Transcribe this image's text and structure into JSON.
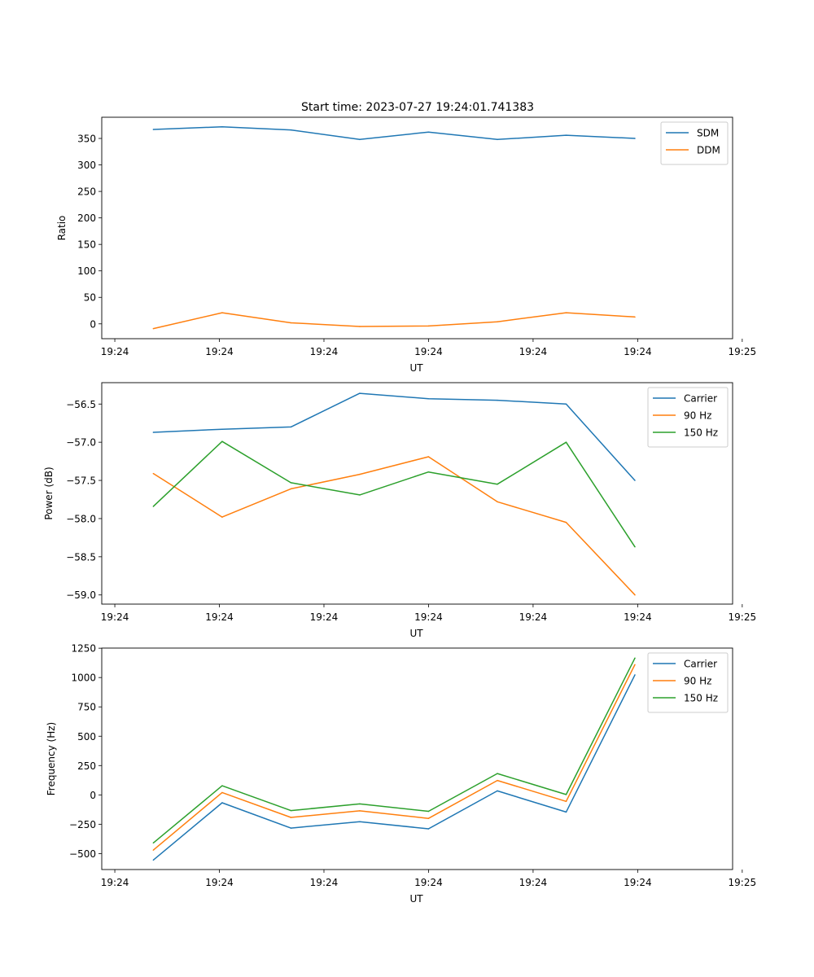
{
  "figure": {
    "title": "Start time: 2023-07-27 19:24:01.741383"
  },
  "colors": {
    "blue": "#1f77b4",
    "orange": "#ff7f0e",
    "green": "#2ca02c"
  },
  "chart_data": [
    {
      "type": "line",
      "title": "Start time: 2023-07-27 19:24:01.741383",
      "xlabel": "UT",
      "ylabel": "Ratio",
      "x": [
        1,
        2,
        3,
        4,
        5,
        6,
        7,
        8
      ],
      "xlim": [
        0.25,
        9.42
      ],
      "xticks": [
        0.44,
        1.96,
        3.48,
        5.0,
        6.52,
        8.04,
        9.56
      ],
      "xtick_labels": [
        "19:24",
        "19:24",
        "19:24",
        "19:24",
        "19:24",
        "19:24",
        "19:25"
      ],
      "ylim": [
        -28,
        390
      ],
      "yticks": [
        0,
        50,
        100,
        150,
        200,
        250,
        300,
        350
      ],
      "ytick_labels": [
        "0",
        "50",
        "100",
        "150",
        "200",
        "250",
        "300",
        "350"
      ],
      "legend": "top-right",
      "series": [
        {
          "name": "SDM",
          "color": "#1f77b4",
          "values": [
            367,
            372,
            366,
            348,
            362,
            348,
            356,
            350
          ]
        },
        {
          "name": "DDM",
          "color": "#ff7f0e",
          "values": [
            -9,
            21,
            2,
            -5,
            -4,
            4,
            21,
            13
          ]
        }
      ]
    },
    {
      "type": "line",
      "title": "",
      "xlabel": "UT",
      "ylabel": "Power (dB)",
      "x": [
        1,
        2,
        3,
        4,
        5,
        6,
        7,
        8
      ],
      "xlim": [
        0.25,
        9.42
      ],
      "xticks": [
        0.44,
        1.96,
        3.48,
        5.0,
        6.52,
        8.04,
        9.56
      ],
      "xtick_labels": [
        "19:24",
        "19:24",
        "19:24",
        "19:24",
        "19:24",
        "19:24",
        "19:25"
      ],
      "ylim": [
        -59.12,
        -56.22
      ],
      "yticks": [
        -59.0,
        -58.5,
        -58.0,
        -57.5,
        -57.0,
        -56.5
      ],
      "ytick_labels": [
        "−59.0",
        "−58.5",
        "−58.0",
        "−57.5",
        "−57.0",
        "−56.5"
      ],
      "legend": "top-right",
      "series": [
        {
          "name": "Carrier",
          "color": "#1f77b4",
          "values": [
            -56.87,
            -56.83,
            -56.8,
            -56.36,
            -56.43,
            -56.45,
            -56.5,
            -57.5
          ]
        },
        {
          "name": "90 Hz",
          "color": "#ff7f0e",
          "values": [
            -57.41,
            -57.98,
            -57.61,
            -57.42,
            -57.19,
            -57.78,
            -58.05,
            -59.0
          ]
        },
        {
          "name": "150 Hz",
          "color": "#2ca02c",
          "values": [
            -57.84,
            -56.99,
            -57.53,
            -57.69,
            -57.39,
            -57.55,
            -57.0,
            -58.37
          ]
        }
      ]
    },
    {
      "type": "line",
      "title": "",
      "xlabel": "UT",
      "ylabel": "Frequency (Hz)",
      "x": [
        1,
        2,
        3,
        4,
        5,
        6,
        7,
        8
      ],
      "xlim": [
        0.25,
        9.42
      ],
      "xticks": [
        0.44,
        1.96,
        3.48,
        5.0,
        6.52,
        8.04,
        9.56
      ],
      "xtick_labels": [
        "19:24",
        "19:24",
        "19:24",
        "19:24",
        "19:24",
        "19:24",
        "19:25"
      ],
      "ylim": [
        -636,
        1251
      ],
      "yticks": [
        -500,
        -250,
        0,
        250,
        500,
        750,
        1000,
        1250
      ],
      "ytick_labels": [
        "−500",
        "−250",
        "0",
        "250",
        "500",
        "750",
        "1000",
        "1250"
      ],
      "legend": "top-right",
      "series": [
        {
          "name": "Carrier",
          "color": "#1f77b4",
          "values": [
            -555,
            -67,
            -283,
            -228,
            -289,
            34,
            -146,
            1023
          ]
        },
        {
          "name": "90 Hz",
          "color": "#ff7f0e",
          "values": [
            -470,
            20,
            -192,
            -136,
            -200,
            123,
            -55,
            1110
          ]
        },
        {
          "name": "150 Hz",
          "color": "#2ca02c",
          "values": [
            -409,
            78,
            -134,
            -77,
            -140,
            182,
            3,
            1166
          ]
        }
      ]
    }
  ]
}
